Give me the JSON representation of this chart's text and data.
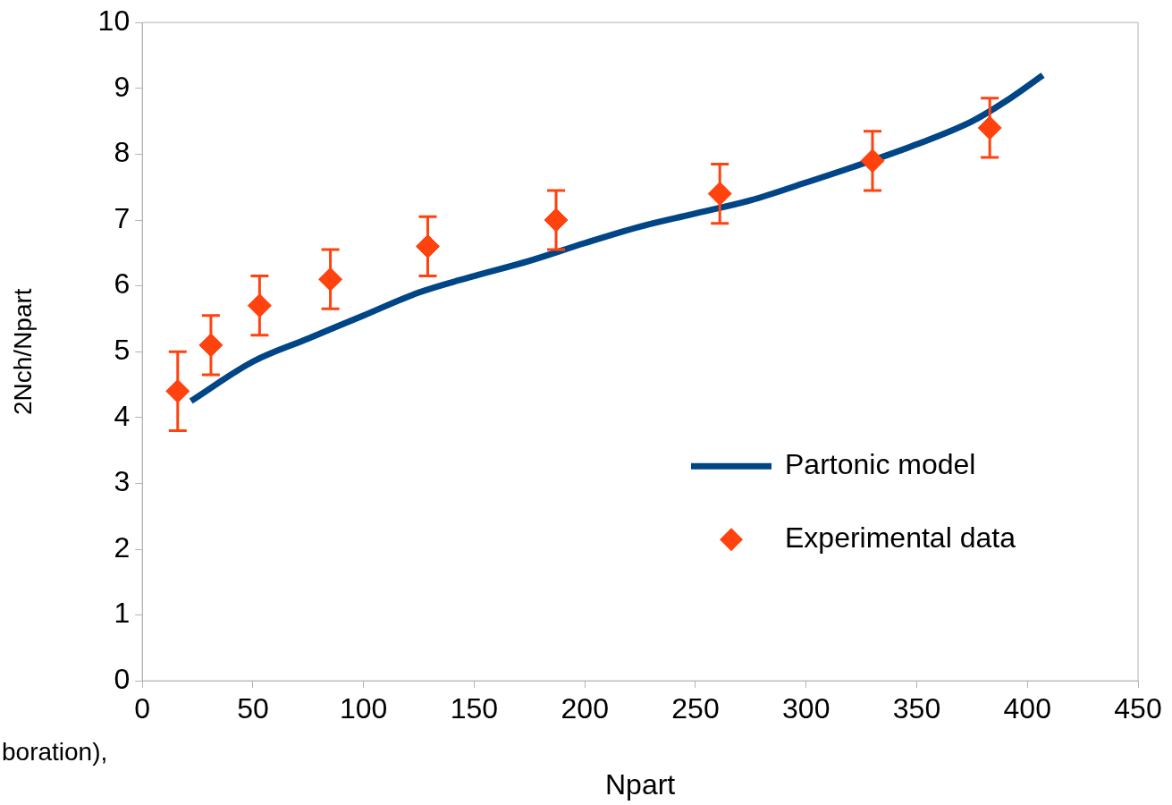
{
  "chart_data": {
    "type": "scatter",
    "xlabel": "Npart",
    "ylabel": "2Nch/Npart",
    "xlim": [
      0,
      450
    ],
    "xticks": [
      0,
      50,
      100,
      150,
      200,
      250,
      300,
      350,
      400,
      450
    ],
    "ylim": [
      0,
      10
    ],
    "yticks": [
      0,
      1,
      2,
      3,
      4,
      5,
      6,
      7,
      8,
      9,
      10
    ],
    "grid": false,
    "legend": "bottom right",
    "annotations": [
      "boration),"
    ],
    "series": [
      {
        "name": "Partonic model",
        "type": "line",
        "color": "#004586",
        "marker": "none",
        "line_style": "solid",
        "x": [
          22,
          50,
          75,
          100,
          125,
          150,
          175,
          200,
          225,
          250,
          275,
          300,
          325,
          350,
          375,
          390,
          407
        ],
        "values": [
          4.25,
          4.85,
          5.2,
          5.55,
          5.9,
          6.15,
          6.38,
          6.65,
          6.9,
          7.1,
          7.3,
          7.57,
          7.85,
          8.15,
          8.5,
          8.8,
          9.2
        ]
      },
      {
        "name": "Experimental data",
        "type": "scatter",
        "color": "#ff420e",
        "marker": "diamond",
        "x": [
          16,
          31,
          53,
          85,
          129,
          187,
          261,
          330,
          383
        ],
        "values": [
          4.4,
          5.1,
          5.7,
          6.1,
          6.6,
          7.0,
          7.4,
          7.9,
          8.4
        ],
        "errors": [
          0.6,
          0.45,
          0.45,
          0.45,
          0.45,
          0.45,
          0.45,
          0.45,
          0.45
        ]
      }
    ]
  }
}
